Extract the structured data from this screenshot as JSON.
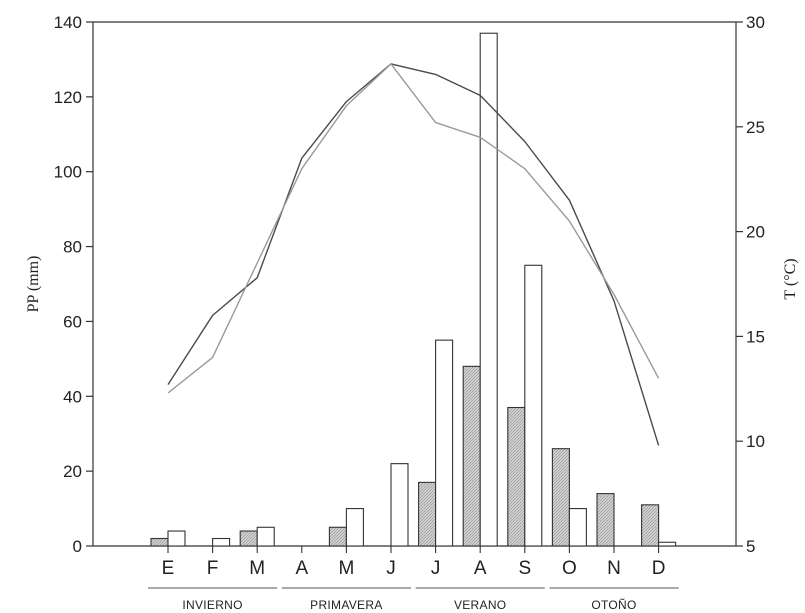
{
  "chart_data": {
    "type": "bar",
    "categories": [
      "E",
      "F",
      "M",
      "A",
      "M",
      "J",
      "J",
      "A",
      "S",
      "O",
      "N",
      "D"
    ],
    "series": [
      {
        "kind": "bar",
        "axis": "left",
        "fill": "hatched",
        "values": [
          2,
          0,
          4,
          0,
          5,
          0,
          17,
          48,
          37,
          26,
          14,
          11
        ]
      },
      {
        "kind": "bar",
        "axis": "left",
        "fill": "white",
        "values": [
          4,
          2,
          5,
          0,
          10,
          22,
          55,
          137,
          75,
          10,
          0,
          1
        ]
      },
      {
        "kind": "line",
        "axis": "right",
        "color": "#4a4a4a",
        "values": [
          12.7,
          16.0,
          17.8,
          23.5,
          26.2,
          28.0,
          27.5,
          26.5,
          24.3,
          21.5,
          16.7,
          9.8
        ]
      },
      {
        "kind": "line",
        "axis": "right",
        "color": "#9a9a9a",
        "values": [
          12.3,
          14.0,
          18.5,
          23.0,
          26.0,
          28.0,
          25.2,
          24.5,
          23.0,
          20.5,
          17.0,
          13.0
        ]
      }
    ],
    "seasons": [
      {
        "label": "INVIERNO",
        "from": 0,
        "to": 2
      },
      {
        "label": "PRIMAVERA",
        "from": 3,
        "to": 5
      },
      {
        "label": "VERANO",
        "from": 6,
        "to": 8
      },
      {
        "label": "OTOÑO",
        "from": 9,
        "to": 11
      }
    ],
    "ylabel": "PP (mm)",
    "y2label": "T (°C)",
    "ylim": [
      0,
      140
    ],
    "yticks": [
      0,
      20,
      40,
      60,
      80,
      100,
      120,
      140
    ],
    "y2lim": [
      5,
      30
    ],
    "y2ticks": [
      5,
      10,
      15,
      20,
      25,
      30
    ],
    "grid": false
  }
}
